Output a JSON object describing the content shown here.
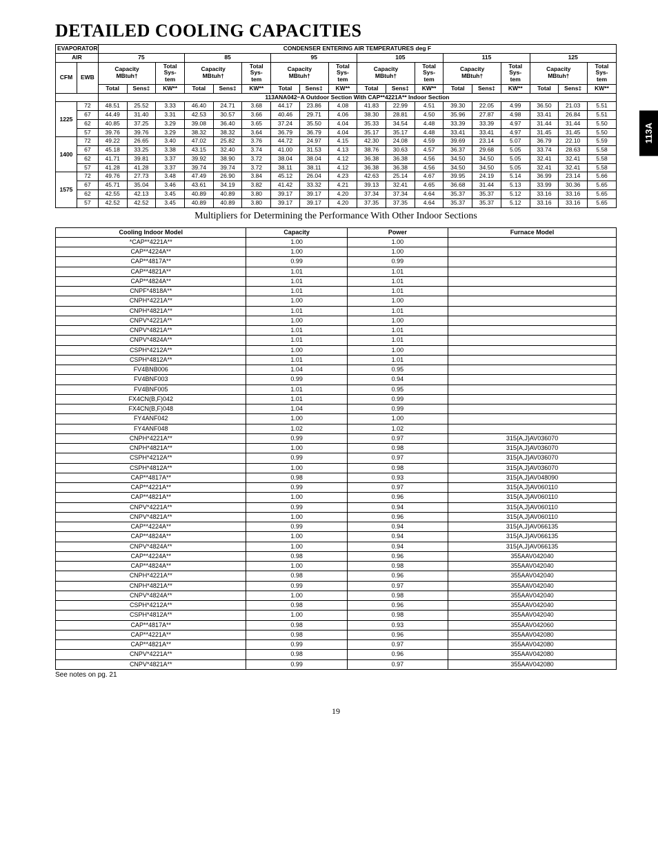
{
  "side_tab": "113A",
  "title": "DETAILED COOLING CAPACITIES",
  "cap_table": {
    "type": "table",
    "top_header_left": "EVAPORATOR AIR",
    "top_header_right": "CONDENSER ENTERING AIR TEMPERATURES deg F",
    "cfm_label": "CFM",
    "ewb_label": "EWB",
    "capacity_label": "Capacity MBtuh†",
    "system_label": "Total Sys- tem",
    "total_label": "Total",
    "sens_label": "Sens‡",
    "kw_label": "KW**",
    "temps": [
      "75",
      "85",
      "95",
      "105",
      "115",
      "125"
    ],
    "section_row": "113ANA042−A Outdoor Section With CAP**4221A** Indoor Section",
    "groups": [
      {
        "cfm": "1225",
        "rows": [
          {
            "ewb": "72",
            "v": [
              "48.51",
              "25.52",
              "3.33",
              "46.40",
              "24.71",
              "3.68",
              "44.17",
              "23.86",
              "4.08",
              "41.83",
              "22.99",
              "4.51",
              "39.30",
              "22.05",
              "4.99",
              "36.50",
              "21.03",
              "5.51"
            ]
          },
          {
            "ewb": "67",
            "v": [
              "44.49",
              "31.40",
              "3.31",
              "42.53",
              "30.57",
              "3.66",
              "40.46",
              "29.71",
              "4.06",
              "38.30",
              "28.81",
              "4.50",
              "35.96",
              "27.87",
              "4.98",
              "33.41",
              "26.84",
              "5.51"
            ]
          },
          {
            "ewb": "62",
            "v": [
              "40.85",
              "37.25",
              "3.29",
              "39.08",
              "36.40",
              "3.65",
              "37.24",
              "35.50",
              "4.04",
              "35.33",
              "34.54",
              "4.48",
              "33.39",
              "33.39",
              "4.97",
              "31.44",
              "31.44",
              "5.50"
            ]
          },
          {
            "ewb": "57",
            "v": [
              "39.76",
              "39.76",
              "3.29",
              "38.32",
              "38.32",
              "3.64",
              "36.79",
              "36.79",
              "4.04",
              "35.17",
              "35.17",
              "4.48",
              "33.41",
              "33.41",
              "4.97",
              "31.45",
              "31.45",
              "5.50"
            ]
          }
        ]
      },
      {
        "cfm": "1400",
        "rows": [
          {
            "ewb": "72",
            "v": [
              "49.22",
              "26.65",
              "3.40",
              "47.02",
              "25.82",
              "3.76",
              "44.72",
              "24.97",
              "4.15",
              "42.30",
              "24.08",
              "4.59",
              "39.69",
              "23.14",
              "5.07",
              "36.79",
              "22.10",
              "5.59"
            ]
          },
          {
            "ewb": "67",
            "v": [
              "45.18",
              "33.25",
              "3.38",
              "43.15",
              "32.40",
              "3.74",
              "41.00",
              "31.53",
              "4.13",
              "38.76",
              "30.63",
              "4.57",
              "36.37",
              "29.68",
              "5.05",
              "33.74",
              "28.63",
              "5.58"
            ]
          },
          {
            "ewb": "62",
            "v": [
              "41.71",
              "39.81",
              "3.37",
              "39.92",
              "38.90",
              "3.72",
              "38.04",
              "38.04",
              "4.12",
              "36.38",
              "36.38",
              "4.56",
              "34.50",
              "34.50",
              "5.05",
              "32.41",
              "32.41",
              "5.58"
            ]
          },
          {
            "ewb": "57",
            "v": [
              "41.28",
              "41.28",
              "3.37",
              "39.74",
              "39.74",
              "3.72",
              "38.11",
              "38.11",
              "4.12",
              "36.38",
              "36.38",
              "4.56",
              "34.50",
              "34.50",
              "5.05",
              "32.41",
              "32.41",
              "5.58"
            ]
          }
        ]
      },
      {
        "cfm": "1575",
        "rows": [
          {
            "ewb": "72",
            "v": [
              "49.76",
              "27.73",
              "3.48",
              "47.49",
              "26.90",
              "3.84",
              "45.12",
              "26.04",
              "4.23",
              "42.63",
              "25.14",
              "4.67",
              "39.95",
              "24.19",
              "5.14",
              "36.99",
              "23.14",
              "5.66"
            ]
          },
          {
            "ewb": "67",
            "v": [
              "45.71",
              "35.04",
              "3.46",
              "43.61",
              "34.19",
              "3.82",
              "41.42",
              "33.32",
              "4.21",
              "39.13",
              "32.41",
              "4.65",
              "36.68",
              "31.44",
              "5.13",
              "33.99",
              "30.36",
              "5.65"
            ]
          },
          {
            "ewb": "62",
            "v": [
              "42.55",
              "42.13",
              "3.45",
              "40.89",
              "40.89",
              "3.80",
              "39.17",
              "39.17",
              "4.20",
              "37.34",
              "37.34",
              "4.64",
              "35.37",
              "35.37",
              "5.12",
              "33.16",
              "33.16",
              "5.65"
            ]
          },
          {
            "ewb": "57",
            "v": [
              "42.52",
              "42.52",
              "3.45",
              "40.89",
              "40.89",
              "3.80",
              "39.17",
              "39.17",
              "4.20",
              "37.35",
              "37.35",
              "4.64",
              "35.37",
              "35.37",
              "5.12",
              "33.16",
              "33.16",
              "5.65"
            ]
          }
        ]
      }
    ]
  },
  "subtitle": "Multipliers for Determining the Performance With Other Indoor Sections",
  "mult_table": {
    "type": "table",
    "columns": [
      "Cooling Indoor Model",
      "Capacity",
      "Power",
      "Furnace Model"
    ],
    "col_widths_pct": [
      34,
      18,
      18,
      30
    ],
    "rows": [
      [
        "*CAP**4221A**",
        "1.00",
        "1.00",
        ""
      ],
      [
        "CAP**4224A**",
        "1.00",
        "1.00",
        ""
      ],
      [
        "CAP**4817A**",
        "0.99",
        "0.99",
        ""
      ],
      [
        "CAP**4821A**",
        "1.01",
        "1.01",
        ""
      ],
      [
        "CAP**4824A**",
        "1.01",
        "1.01",
        ""
      ],
      [
        "CNPF*4818A**",
        "1.01",
        "1.01",
        ""
      ],
      [
        "CNPH*4221A**",
        "1.00",
        "1.00",
        ""
      ],
      [
        "CNPH*4821A**",
        "1.01",
        "1.01",
        ""
      ],
      [
        "CNPV*4221A**",
        "1.00",
        "1.00",
        ""
      ],
      [
        "CNPV*4821A**",
        "1.01",
        "1.01",
        ""
      ],
      [
        "CNPV*4824A**",
        "1.01",
        "1.01",
        ""
      ],
      [
        "CSPH*4212A**",
        "1.00",
        "1.00",
        ""
      ],
      [
        "CSPH*4812A**",
        "1.01",
        "1.01",
        ""
      ],
      [
        "FV4BNB006",
        "1.04",
        "0.95",
        ""
      ],
      [
        "FV4BNF003",
        "0.99",
        "0.94",
        ""
      ],
      [
        "FV4BNF005",
        "1.01",
        "0.95",
        ""
      ],
      [
        "FX4CN(B,F)042",
        "1.01",
        "0.99",
        ""
      ],
      [
        "FX4CN(B,F)048",
        "1.04",
        "0.99",
        ""
      ],
      [
        "FY4ANF042",
        "1.00",
        "1.00",
        ""
      ],
      [
        "FY4ANF048",
        "1.02",
        "1.02",
        ""
      ],
      [
        "CNPH*4221A**",
        "0.99",
        "0.97",
        "315{A,J}AV036070"
      ],
      [
        "CNPH*4821A**",
        "1.00",
        "0.98",
        "315{A,J}AV036070"
      ],
      [
        "CSPH*4212A**",
        "0.99",
        "0.97",
        "315{A,J}AV036070"
      ],
      [
        "CSPH*4812A**",
        "1.00",
        "0.98",
        "315{A,J}AV036070"
      ],
      [
        "CAP**4817A**",
        "0.98",
        "0.93",
        "315{A,J}AV048090"
      ],
      [
        "CAP**4221A**",
        "0.99",
        "0.97",
        "315{A,J}AV060110"
      ],
      [
        "CAP**4821A**",
        "1.00",
        "0.96",
        "315{A,J}AV060110"
      ],
      [
        "CNPV*4221A**",
        "0.99",
        "0.94",
        "315{A,J}AV060110"
      ],
      [
        "CNPV*4821A**",
        "1.00",
        "0.96",
        "315{A,J}AV060110"
      ],
      [
        "CAP**4224A**",
        "0.99",
        "0.94",
        "315{A,J}AV066135"
      ],
      [
        "CAP**4824A**",
        "1.00",
        "0.94",
        "315{A,J}AV066135"
      ],
      [
        "CNPV*4824A**",
        "1.00",
        "0.94",
        "315{A,J}AV066135"
      ],
      [
        "CAP**4224A**",
        "0.98",
        "0.96",
        "355AAV042040"
      ],
      [
        "CAP**4824A**",
        "1.00",
        "0.98",
        "355AAV042040"
      ],
      [
        "CNPH*4221A**",
        "0.98",
        "0.96",
        "355AAV042040"
      ],
      [
        "CNPH*4821A**",
        "0.99",
        "0.97",
        "355AAV042040"
      ],
      [
        "CNPV*4824A**",
        "1.00",
        "0.98",
        "355AAV042040"
      ],
      [
        "CSPH*4212A**",
        "0.98",
        "0.96",
        "355AAV042040"
      ],
      [
        "CSPH*4812A**",
        "1.00",
        "0.98",
        "355AAV042040"
      ],
      [
        "CAP**4817A**",
        "0.98",
        "0.93",
        "355AAV042060"
      ],
      [
        "CAP**4221A**",
        "0.98",
        "0.96",
        "355AAV042080"
      ],
      [
        "CAP**4821A**",
        "0.99",
        "0.97",
        "355AAV042080"
      ],
      [
        "CNPV*4221A**",
        "0.98",
        "0.96",
        "355AAV042080"
      ],
      [
        "CNPV*4821A**",
        "0.99",
        "0.97",
        "355AAV042080"
      ]
    ]
  },
  "footnote": "See notes on pg. 21",
  "page_number": "19",
  "colors": {
    "text": "#000000",
    "background": "#ffffff",
    "border": "#000000",
    "tab_bg": "#000000",
    "tab_text": "#ffffff"
  }
}
